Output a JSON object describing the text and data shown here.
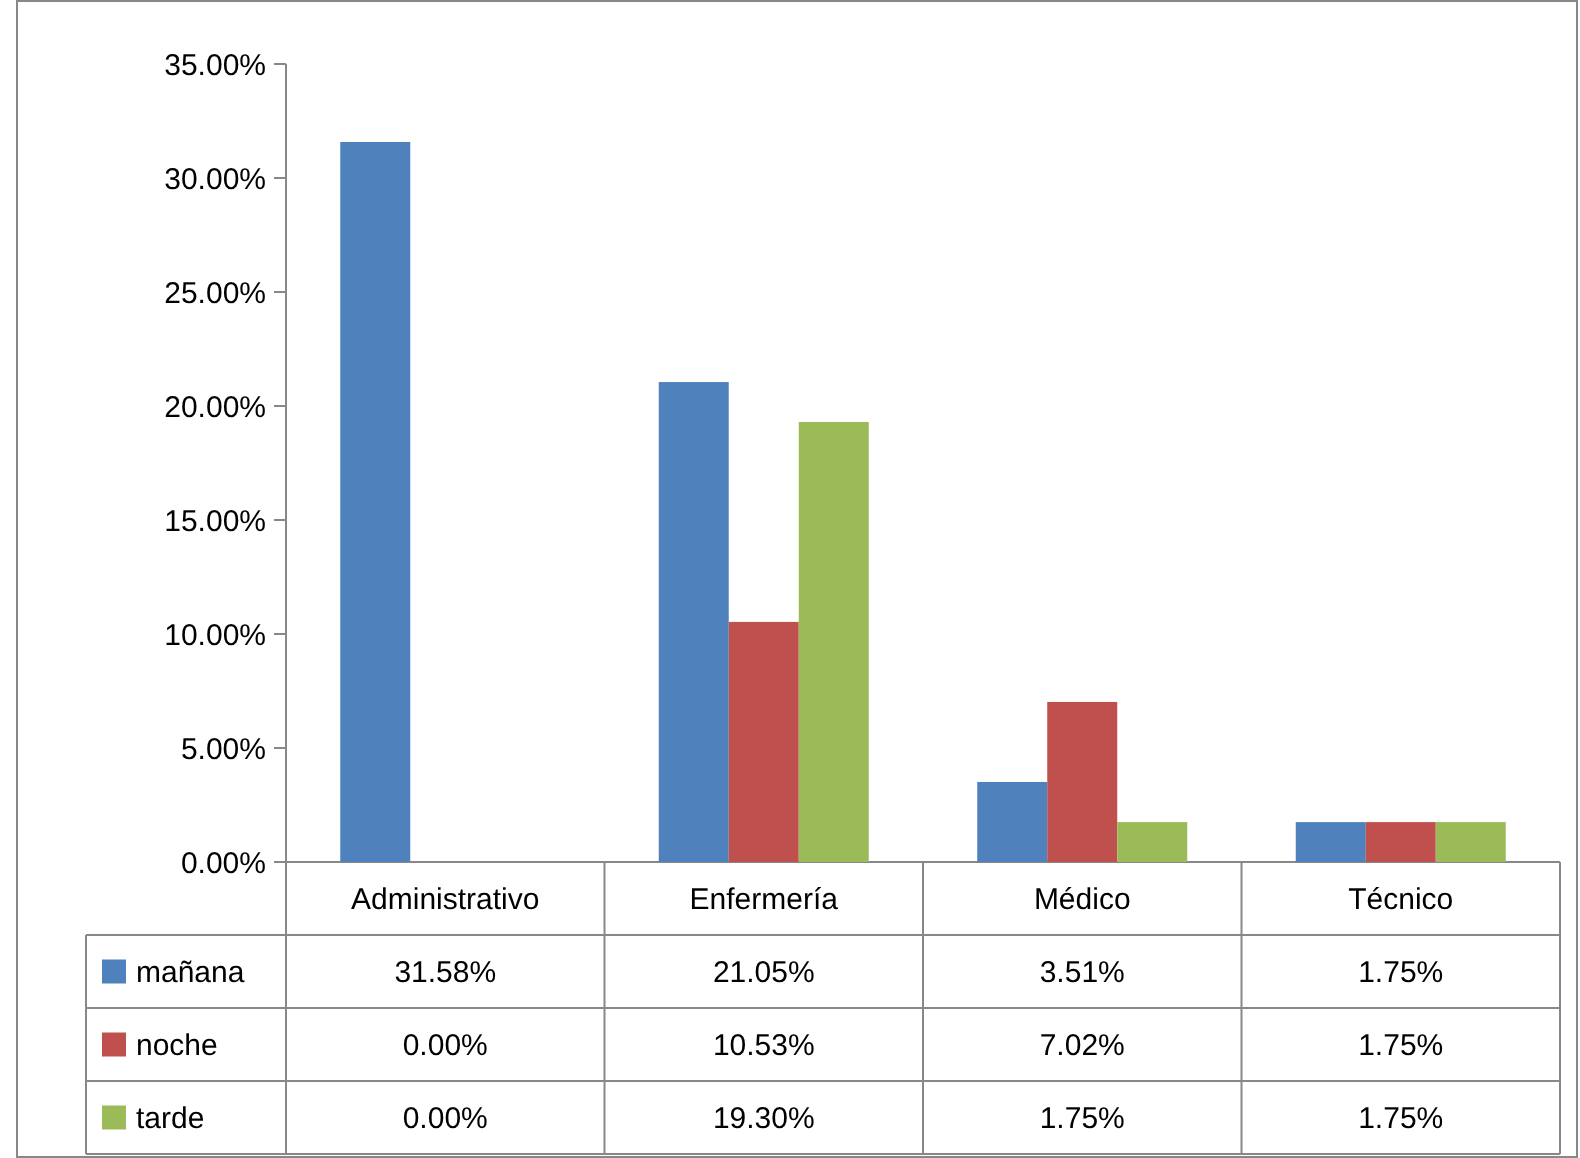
{
  "chart_data": {
    "type": "bar",
    "categories": [
      "Administrativo",
      "Enfermería",
      "Médico",
      "Técnico"
    ],
    "series": [
      {
        "name": "mañana",
        "color": "#4f81bd",
        "values": [
          31.58,
          21.05,
          3.51,
          1.75
        ],
        "value_labels": [
          "31.58%",
          "21.05%",
          "3.51%",
          "1.75%"
        ]
      },
      {
        "name": "noche",
        "color": "#c0504d",
        "values": [
          0,
          10.53,
          7.02,
          1.75
        ],
        "value_labels": [
          "0.00%",
          "10.53%",
          "7.02%",
          "1.75%"
        ]
      },
      {
        "name": "tarde",
        "color": "#9bbb59",
        "values": [
          0,
          19.3,
          1.75,
          1.75
        ],
        "value_labels": [
          "0.00%",
          "19.30%",
          "1.75%",
          "1.75%"
        ]
      }
    ],
    "ylim": [
      0,
      35
    ],
    "yticks": [
      {
        "value": 0,
        "label": "0.00%"
      },
      {
        "value": 5,
        "label": "5.00%"
      },
      {
        "value": 10,
        "label": "10.00%"
      },
      {
        "value": 15,
        "label": "15.00%"
      },
      {
        "value": 20,
        "label": "20.00%"
      },
      {
        "value": 25,
        "label": "25.00%"
      },
      {
        "value": 30,
        "label": "30.00%"
      },
      {
        "value": 35,
        "label": "35.00%"
      }
    ],
    "grid": false,
    "legend": "bottom"
  }
}
